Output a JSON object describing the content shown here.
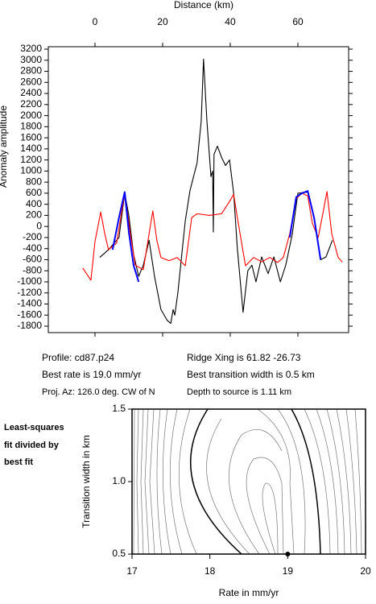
{
  "chart_data": [
    {
      "type": "line",
      "xlabel": "Distance (km)",
      "ylabel": "Anomaly amplitude",
      "xlim": [
        -13.8,
        75
      ],
      "xticks": [
        0,
        20,
        40,
        60
      ],
      "ylim": [
        -1916,
        3244
      ],
      "yticks": [
        -1800,
        -1600,
        -1400,
        -1200,
        -1000,
        -800,
        -600,
        -400,
        -200,
        0,
        200,
        400,
        600,
        800,
        1000,
        1200,
        1400,
        1600,
        1800,
        2000,
        2200,
        2400,
        2600,
        2800,
        3000,
        3200
      ],
      "series": [
        {
          "color": "#000000",
          "x": [
            1.4,
            4.0,
            7.1,
            8.8,
            10.0,
            11.4,
            12.9,
            14.3,
            16.0,
            17.6,
            19.5,
            21.4,
            22.4,
            23.1,
            23.6,
            24.5,
            25.5,
            26.7,
            28.1,
            30.2,
            31.4,
            32.1,
            33.1,
            34.3,
            34.8,
            35.0,
            35.2,
            36.2,
            37.4,
            38.6,
            39.8,
            41.0,
            42.1,
            43.8,
            45.2,
            46.4,
            47.6,
            49.3,
            51.2,
            52.9,
            54.8,
            56.4,
            58.3,
            60.0,
            62.9,
            64.8,
            66.7,
            68.3,
            70.2
          ],
          "values": [
            -560,
            -420,
            -200,
            600,
            200,
            -500,
            -900,
            -700,
            -250,
            -900,
            -1500,
            -1700,
            -1750,
            -1500,
            -1600,
            -1200,
            -600,
            100,
            650,
            1150,
            1900,
            3020,
            1900,
            900,
            1000,
            -100,
            1300,
            1450,
            1250,
            1100,
            1200,
            600,
            -400,
            -1550,
            -800,
            -700,
            -1000,
            -550,
            -850,
            -550,
            -1000,
            -700,
            -150,
            600,
            620,
            150,
            -600,
            -550,
            -250
          ]
        },
        {
          "color": "#ff0000",
          "x": [
            -3.6,
            -1.2,
            0,
            1.7,
            2.9,
            4.0,
            6.4,
            8.8,
            10.5,
            11.9,
            14.3,
            16.0,
            17.1,
            18.3,
            19.5,
            21.9,
            24.3,
            26.7,
            28.6,
            30.2,
            33.8,
            37.4,
            39.8,
            41.0,
            42.1,
            44.5,
            46.9,
            49.3,
            51.7,
            54.0,
            55.7,
            57.6,
            59.5,
            61.2,
            62.9,
            64.3,
            66.0,
            67.6,
            68.6,
            70.0,
            71.9,
            73.1
          ],
          "values": [
            -750,
            -970,
            -270,
            260,
            -130,
            -420,
            -300,
            600,
            -150,
            -700,
            -780,
            -130,
            280,
            -250,
            -560,
            -620,
            -560,
            -710,
            160,
            230,
            200,
            230,
            450,
            580,
            160,
            -710,
            -560,
            -640,
            -560,
            -650,
            -560,
            -130,
            500,
            600,
            550,
            50,
            -200,
            300,
            630,
            -130,
            -560,
            -640
          ]
        },
        {
          "color": "#0000ff",
          "x": [
            5.2,
            7.1,
            8.8,
            10.0,
            11.4,
            12.9,
            35.0,
            57.6,
            59.5,
            61.2,
            62.9,
            64.8,
            66.7
          ],
          "values": [
            -420,
            160,
            620,
            -100,
            -700,
            -1000,
            null,
            -200,
            530,
            600,
            640,
            150,
            -590
          ]
        }
      ],
      "annotations": [
        "Profile: cd87.p24",
        "Ridge Xing is 61.82 -26.73",
        "Best rate is 19.0 mm/yr",
        "Best transition width is 0.5 km",
        "Proj. Az: 126.0 deg. CW of N",
        "Depth to source is   1.11 km"
      ]
    },
    {
      "type": "contour",
      "note": [
        "Least-squares",
        "fit divided by",
        "best fit"
      ],
      "xlabel": "Rate in mm/yr",
      "ylabel": "Transition width in km",
      "xlim": [
        17,
        20
      ],
      "xticks": [
        17,
        18,
        19,
        20
      ],
      "ylim": [
        0.5,
        1.5
      ],
      "yticks": [
        0.5,
        {
          "value": 1.0,
          "label": "1.0"
        },
        1.5
      ],
      "best_fit": {
        "x": [
          19
        ],
        "values": [
          0.5
        ],
        "color": "#000000"
      }
    }
  ]
}
